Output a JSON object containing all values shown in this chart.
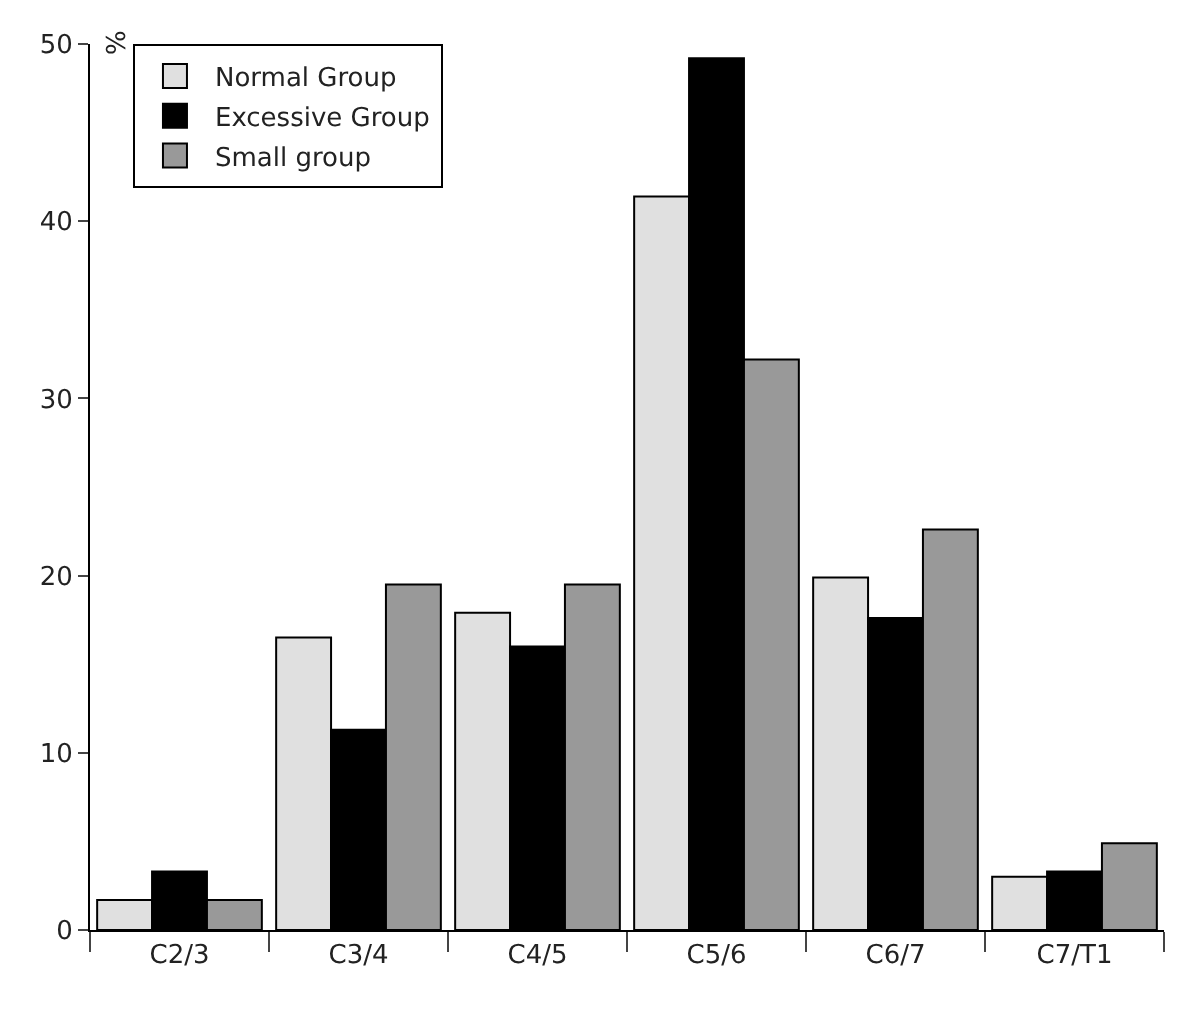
{
  "chart_data": {
    "type": "bar",
    "ylabel": "%",
    "categories": [
      "C2/3",
      "C3/4",
      "C4/5",
      "C5/6",
      "C6/7",
      "C7/T1"
    ],
    "series": [
      {
        "name": "Normal Group",
        "color": "#e0e0e0",
        "values": [
          1.7,
          16.5,
          17.9,
          41.4,
          19.9,
          3.0
        ]
      },
      {
        "name": "Excessive Group",
        "color": "#000000",
        "values": [
          3.3,
          11.3,
          16.0,
          49.2,
          17.6,
          3.3
        ]
      },
      {
        "name": "Small group",
        "color": "#999999",
        "values": [
          1.7,
          19.5,
          19.5,
          32.2,
          22.6,
          4.9
        ]
      }
    ],
    "ylim": [
      0,
      50
    ],
    "yticks": [
      0,
      10,
      20,
      30,
      40,
      50
    ],
    "grid": false,
    "legend": "top left"
  }
}
